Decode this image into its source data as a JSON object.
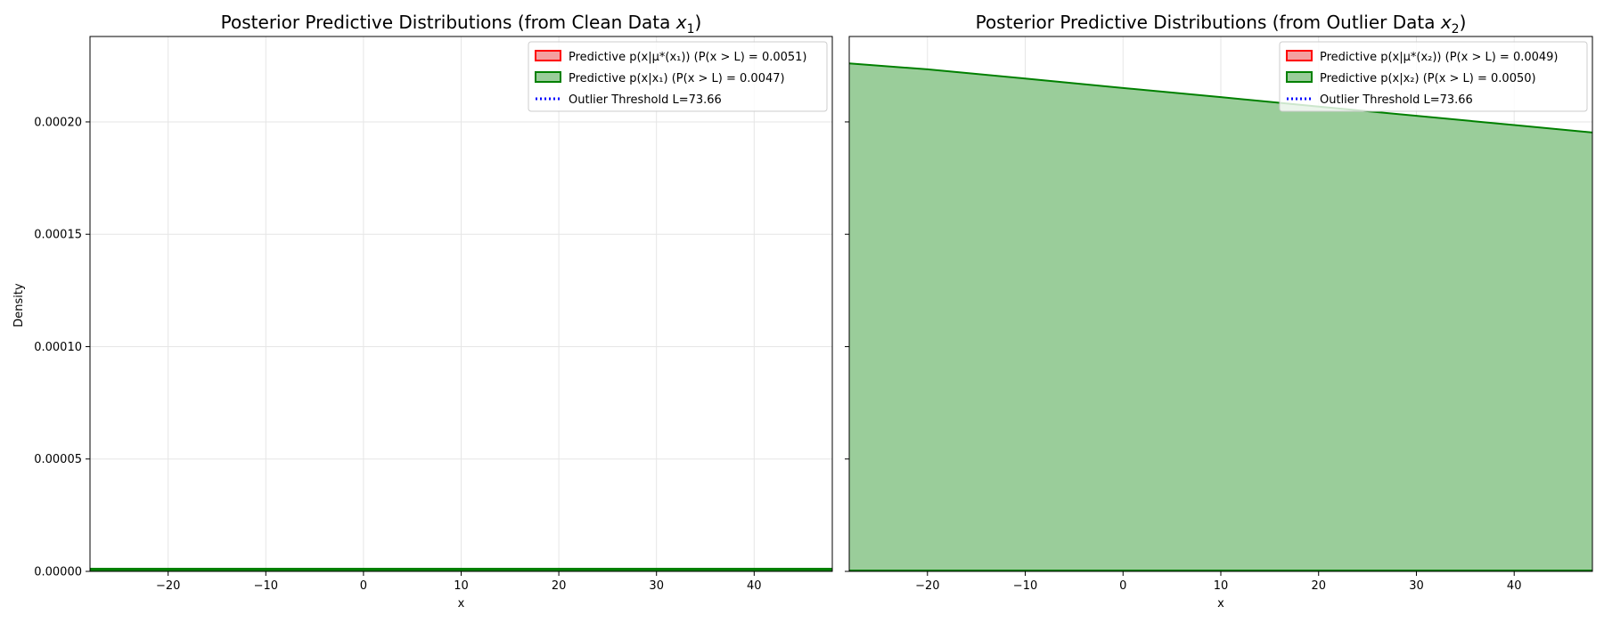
{
  "figure": {
    "ylabel": "Density"
  },
  "chart_data": [
    {
      "type": "area",
      "title": "Posterior Predictive Distributions (from Clean Data ",
      "title_var": "x",
      "title_sub": "1",
      "title_end": ")",
      "xlabel": "x",
      "ylabel": "Density",
      "xlim": [
        -28,
        48
      ],
      "ylim": [
        0,
        0.000238
      ],
      "x_ticks": [
        -20,
        -10,
        0,
        10,
        20,
        30,
        40
      ],
      "x_tick_labels": [
        "−20",
        "−10",
        "0",
        "10",
        "20",
        "30",
        "40"
      ],
      "y_ticks": [
        0,
        5e-05,
        0.0001,
        0.00015,
        0.0002
      ],
      "y_tick_labels": [
        "0.00000",
        "0.00005",
        "0.00010",
        "0.00015",
        "0.00020"
      ],
      "grid": true,
      "legend_position": "top-right",
      "series": [
        {
          "name": "Predictive p(x|μ*(x₁)) (P(x > L) = 0.0051)",
          "color": "#ff0000",
          "fill": "#f4a0a0",
          "x": [
            -28,
            48
          ],
          "y": [
            8e-07,
            8e-07
          ]
        },
        {
          "name": "Predictive p(x|x₁) (P(x > L) = 0.0047)",
          "color": "#008000",
          "fill": "#9acd9a",
          "x": [
            -28,
            48
          ],
          "y": [
            1.2e-06,
            1.2e-06
          ]
        }
      ],
      "threshold": {
        "name": "Outlier Threshold L=73.66",
        "value": 73.66,
        "color": "#0000ff"
      },
      "legend": [
        {
          "label": "Predictive p(x|μ*(x₁)) (P(x > L) = 0.0051)",
          "kind": "patch",
          "color": "#ff0000",
          "fill": "#f4a0a0"
        },
        {
          "label": "Predictive p(x|x₁) (P(x > L) = 0.0047)",
          "kind": "patch",
          "color": "#008000",
          "fill": "#9acd9a"
        },
        {
          "label": "Outlier Threshold L=73.66",
          "kind": "dotted",
          "color": "#0000ff"
        }
      ]
    },
    {
      "type": "area",
      "title": "Posterior Predictive Distributions (from Outlier Data ",
      "title_var": "x",
      "title_sub": "2",
      "title_end": ")",
      "xlabel": "x",
      "ylabel": "",
      "xlim": [
        -28,
        48
      ],
      "ylim": [
        0,
        0.000238
      ],
      "x_ticks": [
        -20,
        -10,
        0,
        10,
        20,
        30,
        40
      ],
      "x_tick_labels": [
        "−20",
        "−10",
        "0",
        "10",
        "20",
        "30",
        "40"
      ],
      "y_ticks": [
        0,
        5e-05,
        0.0001,
        0.00015,
        0.0002
      ],
      "y_tick_labels": [],
      "grid": true,
      "legend_position": "top-right",
      "series": [
        {
          "name": "Predictive p(x|μ*(x₂)) (P(x > L) = 0.0049)",
          "color": "#ff0000",
          "fill": "#f4a0a0",
          "x": [
            -28,
            48
          ],
          "y": [
            1e-07,
            1e-07
          ]
        },
        {
          "name": "Predictive p(x|x₂) (P(x > L) = 0.0050)",
          "color": "#008000",
          "fill": "#9acd9a",
          "x": [
            -28,
            -20,
            -10,
            0,
            10,
            20,
            30,
            40,
            48
          ],
          "y": [
            0.000226,
            0.0002234,
            0.0002193,
            0.0002151,
            0.000211,
            0.0002068,
            0.0002027,
            0.0001986,
            0.0001953
          ]
        }
      ],
      "threshold": {
        "name": "Outlier Threshold L=73.66",
        "value": 73.66,
        "color": "#0000ff"
      },
      "legend": [
        {
          "label": "Predictive p(x|μ*(x₂)) (P(x > L) = 0.0049)",
          "kind": "patch",
          "color": "#ff0000",
          "fill": "#f4a0a0"
        },
        {
          "label": "Predictive p(x|x₂) (P(x > L) = 0.0050)",
          "kind": "patch",
          "color": "#008000",
          "fill": "#9acd9a"
        },
        {
          "label": "Outlier Threshold L=73.66",
          "kind": "dotted",
          "color": "#0000ff"
        }
      ]
    }
  ]
}
